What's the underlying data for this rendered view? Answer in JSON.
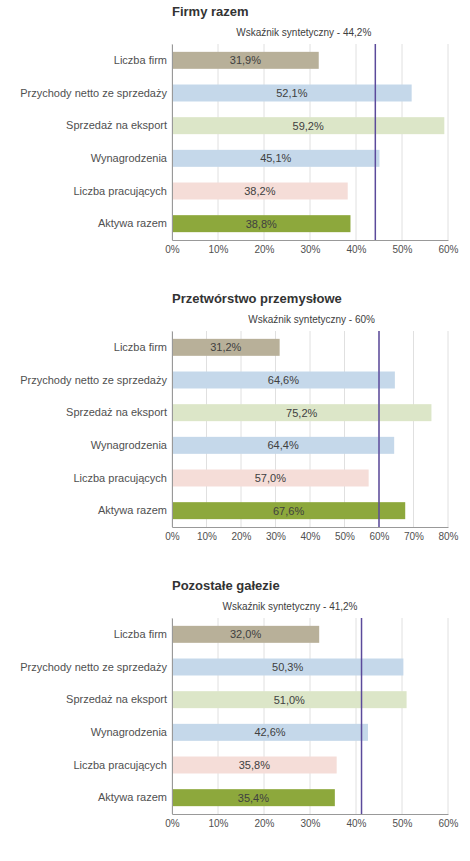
{
  "chart_data": [
    {
      "type": "bar",
      "orientation": "horizontal",
      "title": "Firmy razem",
      "categories": [
        "Liczba firm",
        "Przychody netto ze sprzedaży",
        "Sprzedaż na eksport",
        "Wynagrodzenia",
        "Liczba pracujących",
        "Aktywa razem"
      ],
      "values": [
        31.9,
        52.1,
        59.2,
        45.1,
        38.2,
        38.8
      ],
      "value_labels": [
        "31,9%",
        "52,1%",
        "59,2%",
        "45,1%",
        "38,2%",
        "38,8%"
      ],
      "data_labels": true,
      "colors": [
        "#b8b099",
        "#c5d8ea",
        "#dce6c8",
        "#c5d8ea",
        "#f5ddd8",
        "#8da83c"
      ],
      "annotations": [
        {
          "text": "Wskaźnik syntetyczny - 44,2%",
          "x": 44.2,
          "color": "#5b4a9b"
        }
      ],
      "xlim": [
        0,
        60
      ],
      "xticks": [
        {
          "value": 0,
          "label": "0%"
        },
        {
          "value": 10,
          "label": "10%"
        },
        {
          "value": 20,
          "label": "20%"
        },
        {
          "value": 30,
          "label": "30%"
        },
        {
          "value": 40,
          "label": "40%"
        },
        {
          "value": 50,
          "label": "50%"
        },
        {
          "value": 60,
          "label": "60%"
        }
      ],
      "grid": true
    },
    {
      "type": "bar",
      "orientation": "horizontal",
      "title": "Przetwórstwo przemysłowe",
      "categories": [
        "Liczba firm",
        "Przychody netto ze sprzedaży",
        "Sprzedaż na eksport",
        "Wynagrodzenia",
        "Liczba pracujących",
        "Aktywa razem"
      ],
      "values": [
        31.2,
        64.6,
        75.2,
        64.4,
        57.0,
        67.6
      ],
      "value_labels": [
        "31,2%",
        "64,6%",
        "75,2%",
        "64,4%",
        "57,0%",
        "67,6%"
      ],
      "data_labels": true,
      "colors": [
        "#b8b099",
        "#c5d8ea",
        "#dce6c8",
        "#c5d8ea",
        "#f5ddd8",
        "#8da83c"
      ],
      "annotations": [
        {
          "text": "Wskaźnik syntetyczny - 60%",
          "x": 60.0,
          "color": "#5b4a9b"
        }
      ],
      "xlim": [
        0,
        80
      ],
      "xticks": [
        {
          "value": 0,
          "label": "0%"
        },
        {
          "value": 10,
          "label": "10%"
        },
        {
          "value": 20,
          "label": "20%"
        },
        {
          "value": 30,
          "label": "30%"
        },
        {
          "value": 40,
          "label": "40%"
        },
        {
          "value": 50,
          "label": "50%"
        },
        {
          "value": 60,
          "label": "60%"
        },
        {
          "value": 70,
          "label": "70%"
        },
        {
          "value": 80,
          "label": "80%"
        }
      ],
      "grid": true
    },
    {
      "type": "bar",
      "orientation": "horizontal",
      "title": "Pozostałe gałezie",
      "categories": [
        "Liczba firm",
        "Przychody netto ze sprzedaży",
        "Sprzedaż na eksport",
        "Wynagrodzenia",
        "Liczba pracujących",
        "Aktywa razem"
      ],
      "values": [
        32.0,
        50.3,
        51.0,
        42.6,
        35.8,
        35.4
      ],
      "value_labels": [
        "32,0%",
        "50,3%",
        "51,0%",
        "42,6%",
        "35,8%",
        "35,4%"
      ],
      "data_labels": true,
      "colors": [
        "#b8b099",
        "#c5d8ea",
        "#dce6c8",
        "#c5d8ea",
        "#f5ddd8",
        "#8da83c"
      ],
      "annotations": [
        {
          "text": "Wskaźnik syntetyczny - 41,2%",
          "x": 41.2,
          "color": "#5b4a9b"
        }
      ],
      "xlim": [
        0,
        60
      ],
      "xticks": [
        {
          "value": 0,
          "label": "0%"
        },
        {
          "value": 10,
          "label": "10%"
        },
        {
          "value": 20,
          "label": "20%"
        },
        {
          "value": 30,
          "label": "30%"
        },
        {
          "value": 40,
          "label": "40%"
        },
        {
          "value": 50,
          "label": "50%"
        },
        {
          "value": 60,
          "label": "60%"
        }
      ],
      "grid": true
    }
  ]
}
